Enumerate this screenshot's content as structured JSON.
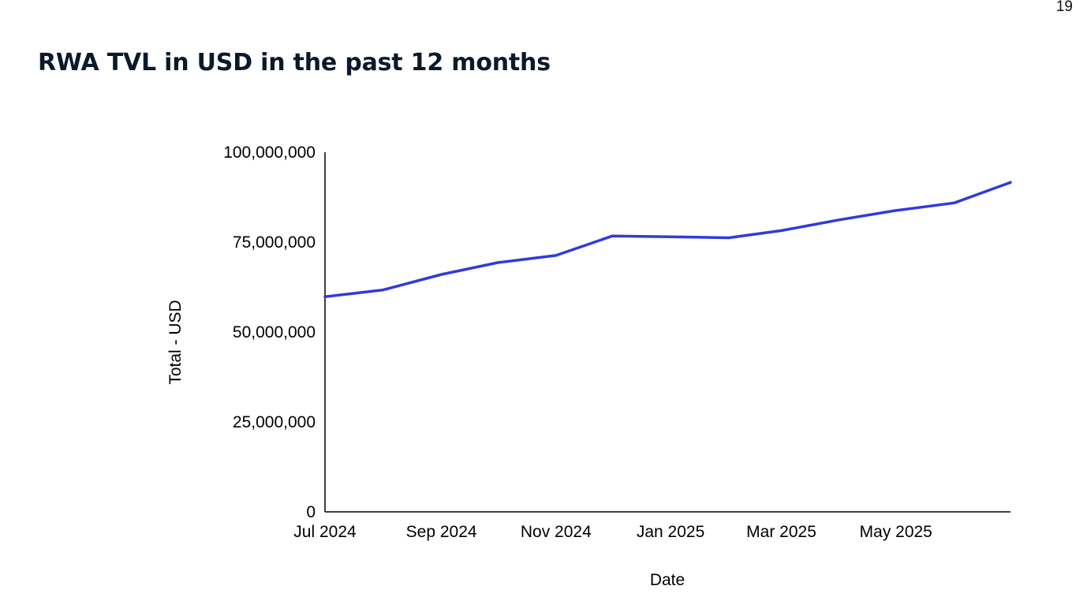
{
  "page_number": "19",
  "title": "RWA TVL in USD in the past 12 months",
  "colors": {
    "line": "#2f3bdc",
    "title": "#0b1a2b"
  },
  "chart_data": {
    "type": "line",
    "title": "RWA TVL in USD in the past 12 months",
    "xlabel": "Date",
    "ylabel": "Total - USD",
    "ylim": [
      0,
      100000000
    ],
    "yticks": [
      {
        "value": 0,
        "label": "0"
      },
      {
        "value": 25000000,
        "label": "25,000,000"
      },
      {
        "value": 50000000,
        "label": "50,000,000"
      },
      {
        "value": 75000000,
        "label": "75,000,000"
      },
      {
        "value": 100000000,
        "label": "100,000,000"
      }
    ],
    "xlim": [
      "2024-07-01",
      "2025-07-01"
    ],
    "xticks": [
      {
        "date": "2024-07-01",
        "label": "Jul 2024"
      },
      {
        "date": "2024-09-01",
        "label": "Sep 2024"
      },
      {
        "date": "2024-11-01",
        "label": "Nov 2024"
      },
      {
        "date": "2025-01-01",
        "label": "Jan 2025"
      },
      {
        "date": "2025-03-01",
        "label": "Mar 2025"
      },
      {
        "date": "2025-05-01",
        "label": "May 2025"
      }
    ],
    "grid": false,
    "legend": "none",
    "series": [
      {
        "points": [
          {
            "x": "2024-07-01",
            "y": 59800000
          },
          {
            "x": "2024-08-01",
            "y": 61700000
          },
          {
            "x": "2024-09-01",
            "y": 66000000
          },
          {
            "x": "2024-10-01",
            "y": 69300000
          },
          {
            "x": "2024-11-01",
            "y": 71300000
          },
          {
            "x": "2024-12-01",
            "y": 76700000
          },
          {
            "x": "2025-01-01",
            "y": 76500000
          },
          {
            "x": "2025-02-01",
            "y": 76200000
          },
          {
            "x": "2025-03-01",
            "y": 78200000
          },
          {
            "x": "2025-04-01",
            "y": 81200000
          },
          {
            "x": "2025-05-01",
            "y": 83800000
          },
          {
            "x": "2025-06-01",
            "y": 85900000
          },
          {
            "x": "2025-07-01",
            "y": 91600000
          }
        ]
      }
    ]
  }
}
